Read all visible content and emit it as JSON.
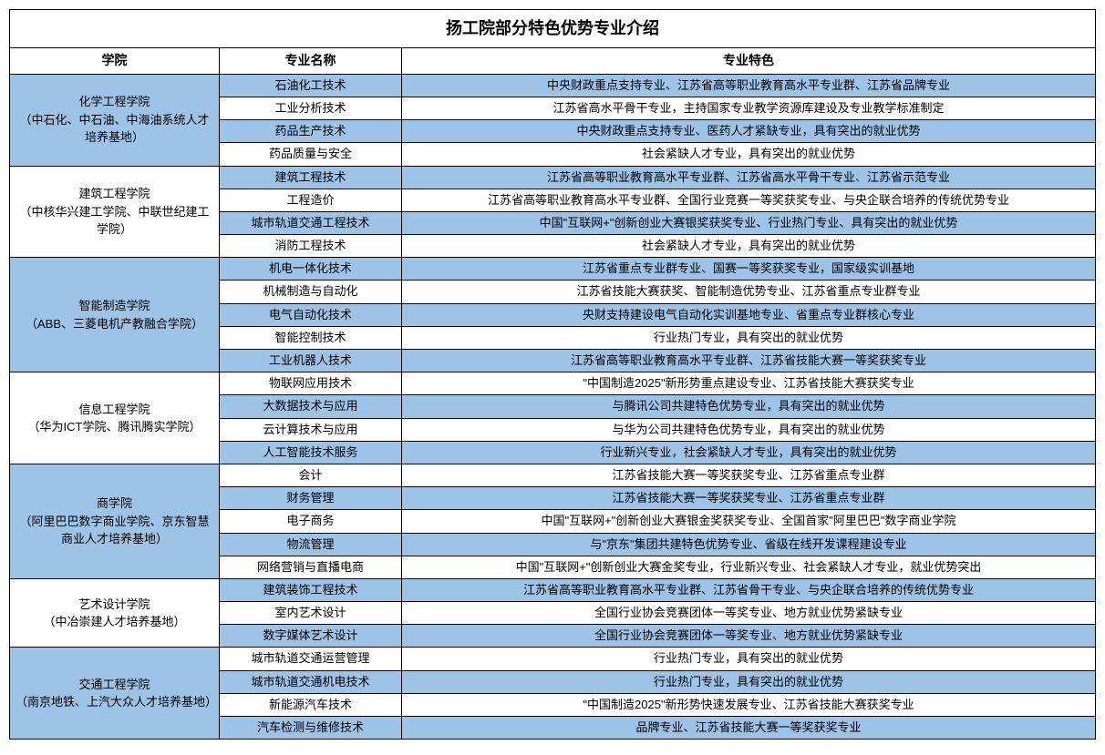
{
  "title": "扬工院部分特色优势专业介绍",
  "headers": {
    "college": "学院",
    "major": "专业名称",
    "feature": "专业特色"
  },
  "colors": {
    "shaded_bg": "#9dc3e6",
    "border": "#000000",
    "background": "#ffffff"
  },
  "column_widths": {
    "college": 230,
    "major": 200
  },
  "colleges": [
    {
      "name": "化学工程学院\n（中石化、中石油、中海油系统人才培养基地）",
      "shaded": true,
      "majors": [
        {
          "name": "石油化工技术",
          "feature": "中央财政重点支持专业、江苏省高等职业教育高水平专业群、江苏省品牌专业",
          "shaded": true
        },
        {
          "name": "工业分析技术",
          "feature": "江苏省高水平骨干专业，主持国家专业教学资源库建设及专业教学标准制定",
          "shaded": false
        },
        {
          "name": "药品生产技术",
          "feature": "中央财政重点支持专业、医药人才紧缺专业，具有突出的就业优势",
          "shaded": true
        },
        {
          "name": "药品质量与安全",
          "feature": "社会紧缺人才专业，具有突出的就业优势",
          "shaded": false
        }
      ]
    },
    {
      "name": "建筑工程学院\n（中核华兴建工学院、中联世纪建工学院）",
      "shaded": false,
      "majors": [
        {
          "name": "建筑工程技术",
          "feature": "江苏省高等职业教育高水平专业群、江苏省高水平骨干专业、江苏省示范专业",
          "shaded": true
        },
        {
          "name": "工程造价",
          "feature": "江苏省高等职业教育高水平专业群、全国行业竞赛一等奖获奖专业、与央企联合培养的传统优势专业",
          "shaded": false
        },
        {
          "name": "城市轨道交通工程技术",
          "feature": "中国\"互联网+\"创新创业大赛银奖获奖专业、行业热门专业、具有突出的就业优势",
          "shaded": true
        },
        {
          "name": "消防工程技术",
          "feature": "社会紧缺人才专业，具有突出的就业优势",
          "shaded": false
        }
      ]
    },
    {
      "name": "智能制造学院\n（ABB、三菱电机产教融合学院）",
      "shaded": true,
      "majors": [
        {
          "name": "机电一体化技术",
          "feature": "江苏省重点专业群专业、国赛一等奖获奖专业，国家级实训基地",
          "shaded": true
        },
        {
          "name": "机械制造与自动化",
          "feature": "江苏省技能大赛获奖、智能制造优势专业、江苏省重点专业群专业",
          "shaded": false
        },
        {
          "name": "电气自动化技术",
          "feature": "央财支持建设电气自动化实训基地专业、省重点专业群核心专业",
          "shaded": true
        },
        {
          "name": "智能控制技术",
          "feature": "行业热门专业，具有突出的就业优势",
          "shaded": false
        },
        {
          "name": "工业机器人技术",
          "feature": "江苏省高等职业教育高水平专业群、江苏省技能大赛一等奖获奖专业",
          "shaded": true
        }
      ]
    },
    {
      "name": "信息工程学院\n（华为ICT学院、腾讯腾实学院）",
      "shaded": false,
      "majors": [
        {
          "name": "物联网应用技术",
          "feature": "\"中国制造2025\"新形势重点建设专业、江苏省技能大赛获奖专业",
          "shaded": false
        },
        {
          "name": "大数据技术与应用",
          "feature": "与腾讯公司共建特色优势专业，具有突出的就业优势",
          "shaded": true
        },
        {
          "name": "云计算技术与应用",
          "feature": "与华为公司共建特色优势专业，具有突出的就业优势",
          "shaded": false
        },
        {
          "name": "人工智能技术服务",
          "feature": "行业新兴专业，社会紧缺人才专业，具有突出的就业优势",
          "shaded": true
        }
      ]
    },
    {
      "name": "商学院\n（阿里巴巴数字商业学院、京东智慧商业人才培养基地）",
      "shaded": true,
      "majors": [
        {
          "name": "会计",
          "feature": "江苏省技能大赛一等奖获奖专业、江苏省重点专业群",
          "shaded": false
        },
        {
          "name": "财务管理",
          "feature": "江苏省技能大赛一等奖获奖专业、江苏省重点专业群",
          "shaded": true
        },
        {
          "name": "电子商务",
          "feature": "中国\"互联网+\"创新创业大赛银金奖获奖专业、全国首家\"阿里巴巴\"数字商业学院",
          "shaded": false
        },
        {
          "name": "物流管理",
          "feature": "与\"京东\"集团共建特色优势专业、省级在线开发课程建设专业",
          "shaded": true
        },
        {
          "name": "网络营销与直播电商",
          "feature": "中国\"互联网+\"创新创业大赛金奖专业，行业新兴专业、社会紧缺人才专业，就业优势突出",
          "shaded": false
        }
      ]
    },
    {
      "name": "艺术设计学院\n（中冶崇建人才培养基地）",
      "shaded": false,
      "majors": [
        {
          "name": "建筑装饰工程技术",
          "feature": "江苏省高等职业教育高水平专业群、江苏省骨干专业、与央企联合培养的传统优势专业",
          "shaded": true
        },
        {
          "name": "室内艺术设计",
          "feature": "全国行业协会竞赛团体一等奖专业、地方就业优势紧缺专业",
          "shaded": false
        },
        {
          "name": "数字媒体艺术设计",
          "feature": "全国行业协会竞赛团体一等奖专业、地方就业优势紧缺专业",
          "shaded": true
        }
      ]
    },
    {
      "name": "交通工程学院\n（南京地铁、上汽大众人才培养基地）",
      "shaded": true,
      "majors": [
        {
          "name": "城市轨道交通运营管理",
          "feature": "行业热门专业，具有突出的就业优势",
          "shaded": false
        },
        {
          "name": "城市轨道交通机电技术",
          "feature": "行业热门专业，具有突出的就业优势",
          "shaded": true
        },
        {
          "name": "新能源汽车技术",
          "feature": "\"中国制造2025\"新形势快速发展专业、江苏省技能大赛获奖专业",
          "shaded": false
        },
        {
          "name": "汽车检测与维修技术",
          "feature": "品牌专业、江苏省技能大赛一等奖获奖专业",
          "shaded": true
        }
      ]
    }
  ]
}
